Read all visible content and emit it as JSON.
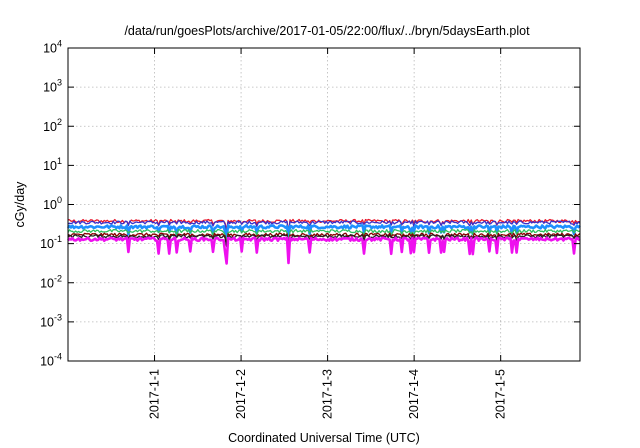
{
  "chart_data": {
    "type": "line",
    "title": "/data/run/goesPlots/archive/2017-01-05/22:00/flux/../bryn/5daysEarth.plot",
    "xlabel": "Coordinated Universal Time (UTC)",
    "ylabel": "cGy/day",
    "yscale": "log",
    "ylim": [
      0.0001,
      10000
    ],
    "y_ticks": [
      {
        "base": "10",
        "exp": "-4",
        "value": 0.0001
      },
      {
        "base": "10",
        "exp": "-3",
        "value": 0.001
      },
      {
        "base": "10",
        "exp": "-2",
        "value": 0.01
      },
      {
        "base": "10",
        "exp": "-1",
        "value": 0.1
      },
      {
        "base": "10",
        "exp": "0",
        "value": 1
      },
      {
        "base": "10",
        "exp": "1",
        "value": 10
      },
      {
        "base": "10",
        "exp": "2",
        "value": 100
      },
      {
        "base": "10",
        "exp": "3",
        "value": 1000
      },
      {
        "base": "10",
        "exp": "4",
        "value": 10000
      }
    ],
    "xlim": [
      "2016-12-31T00:00",
      "2017-01-05T22:00"
    ],
    "x_ticks": [
      {
        "label": "2017-1-1",
        "value": "2017-01-01T00:00"
      },
      {
        "label": "2017-1-2",
        "value": "2017-01-02T00:00"
      },
      {
        "label": "2017-1-3",
        "value": "2017-01-03T00:00"
      },
      {
        "label": "2017-1-4",
        "value": "2017-01-04T00:00"
      },
      {
        "label": "2017-1-5",
        "value": "2017-01-05T00:00"
      }
    ],
    "grid": true,
    "legend": "none",
    "series": [
      {
        "color": "#e8172b",
        "level": 0.38,
        "dips": "small",
        "values": [
          0.38,
          0.42,
          0.36,
          0.4,
          0.38
        ]
      },
      {
        "color": "#3b2fc8",
        "level": 0.35,
        "dips": "small",
        "values": [
          0.35,
          0.38,
          0.33,
          0.36,
          0.35
        ]
      },
      {
        "color": "#1e90ff",
        "level": 0.27,
        "dips": "medium",
        "values": [
          0.27,
          0.29,
          0.25,
          0.27,
          0.27
        ]
      },
      {
        "color": "#2fbf5f",
        "level": 0.21,
        "dips": "small",
        "values": [
          0.21,
          0.22,
          0.2,
          0.21,
          0.21
        ]
      },
      {
        "color": "#8b0000",
        "level": 0.17,
        "dips": "small",
        "values": [
          0.17,
          0.18,
          0.16,
          0.17,
          0.17
        ]
      },
      {
        "color": "#222222",
        "level": 0.155,
        "dips": "small",
        "values": [
          0.155,
          0.16,
          0.15,
          0.155,
          0.155
        ]
      },
      {
        "color": "#ee10ee",
        "level": 0.13,
        "dips": "deep",
        "values": [
          0.13,
          0.12,
          0.11,
          0.13,
          0.13
        ]
      }
    ]
  }
}
